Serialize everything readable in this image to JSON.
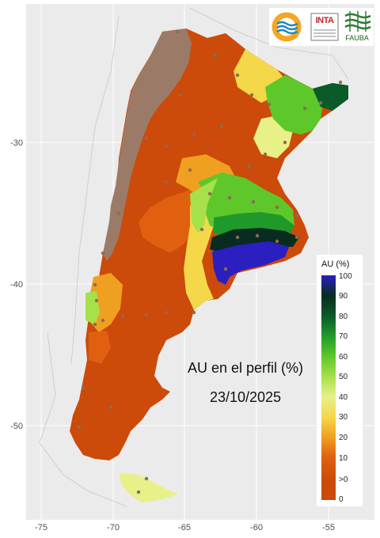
{
  "map": {
    "title_line1": "AU en el perfil (%)",
    "date": "23/10/2025",
    "x_ticks": [
      "-75",
      "-70",
      "-65",
      "-60",
      "-55"
    ],
    "y_ticks": [
      "-30",
      "-40",
      "-50"
    ],
    "legend": {
      "title": "AU (%)",
      "labels": [
        "100",
        "90",
        "80",
        "70",
        "60",
        "50",
        "40",
        "30",
        "20",
        "10",
        ">0",
        "0"
      ],
      "colors": [
        "#2b1fbf",
        "#082c20",
        "#0a5a2a",
        "#1f9a2a",
        "#5ec72a",
        "#a6e04a",
        "#e8f088",
        "#f5d84a",
        "#f0a020",
        "#e06010",
        "#c94a08",
        "#cc4a0a"
      ]
    }
  },
  "logos": {
    "inta_text": "INTA",
    "fauba_text": "FAUBA"
  },
  "colors": {
    "background": "#ebebeb",
    "grid": "#ffffff",
    "arid": "#9b7b67",
    "dry": "#cc4a0a"
  }
}
